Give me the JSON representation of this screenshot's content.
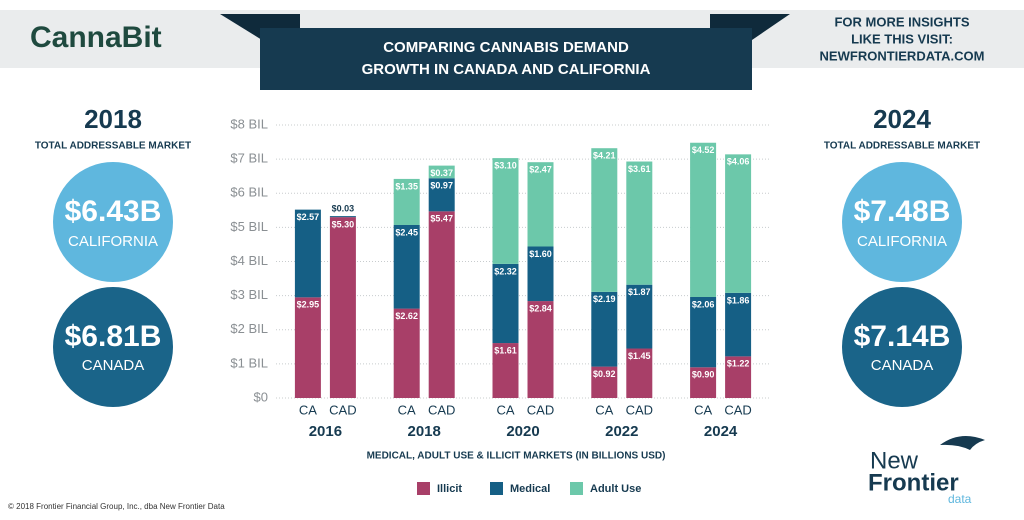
{
  "brand": "CannaBit",
  "promo": [
    "FOR MORE INSIGHTS",
    "LIKE THIS VISIT:",
    "NEWFRONTIERDATA.COM"
  ],
  "left_panel": {
    "year": "2018",
    "subtitle": "TOTAL ADDRESSABLE MARKET",
    "california": {
      "value": "$6.43B",
      "label": "CALIFORNIA"
    },
    "canada": {
      "value": "$6.81B",
      "label": "CANADA"
    }
  },
  "right_panel": {
    "year": "2024",
    "subtitle": "TOTAL ADDRESSABLE MARKET",
    "california": {
      "value": "$7.48B",
      "label": "CALIFORNIA"
    },
    "canada": {
      "value": "$7.14B",
      "label": "CANADA"
    }
  },
  "logo": {
    "line1": "New",
    "line2": "Frontier",
    "line3": "data"
  },
  "copyright": "© 2018 Frontier Financial Group, Inc., dba New Frontier Data",
  "chart_data": {
    "type": "stacked_bar",
    "title": [
      "COMPARING CANNABIS DEMAND",
      "GROWTH IN CANADA AND CALIFORNIA"
    ],
    "x_label": "MEDICAL, ADULT USE & ILLICIT MARKETS (IN BILLIONS USD)",
    "groups": [
      "2016",
      "2018",
      "2020",
      "2022",
      "2024"
    ],
    "categories": [
      "CA",
      "CAD",
      "CA",
      "CAD",
      "CA",
      "CAD",
      "CA",
      "CAD",
      "CA",
      "CAD"
    ],
    "series": [
      {
        "name": "Illicit",
        "color": "#a83f68",
        "values": [
          2.95,
          5.3,
          2.62,
          5.47,
          1.61,
          2.84,
          0.92,
          1.45,
          0.9,
          1.22
        ],
        "value_labels": [
          "$2.95",
          "$5.30",
          "$2.62",
          "$5.47",
          "$1.61",
          "$2.84",
          "$0.92",
          "$1.45",
          "$0.90",
          "$1.22"
        ]
      },
      {
        "name": "Medical",
        "color": "#155f85",
        "values": [
          2.57,
          0.03,
          2.45,
          0.97,
          2.32,
          1.6,
          2.19,
          1.87,
          2.06,
          1.86
        ],
        "value_labels": [
          "$2.57",
          "$0.03",
          "$2.45",
          "$0.97",
          "$2.32",
          "$1.60",
          "$2.19",
          "$1.87",
          "$2.06",
          "$1.86"
        ]
      },
      {
        "name": "Adult Use",
        "color": "#6cc8aa",
        "values": [
          null,
          null,
          1.35,
          0.37,
          3.1,
          2.47,
          4.21,
          3.61,
          4.52,
          4.06
        ],
        "value_labels": [
          null,
          null,
          "$1.35",
          "$0.37",
          "$3.10",
          "$2.47",
          "$4.21",
          "$3.61",
          "$4.52",
          "$4.06"
        ]
      }
    ],
    "ylim": [
      0,
      8
    ],
    "yticks": [
      {
        "value": 0,
        "label": "$0"
      },
      {
        "value": 1,
        "label": "$1 BIL"
      },
      {
        "value": 2,
        "label": "$2 BIL"
      },
      {
        "value": 3,
        "label": "$3 BIL"
      },
      {
        "value": 4,
        "label": "$4 BIL"
      },
      {
        "value": 5,
        "label": "$5 BIL"
      },
      {
        "value": 6,
        "label": "$6 BIL"
      },
      {
        "value": 7,
        "label": "$7 BIL"
      },
      {
        "value": 8,
        "label": "$8 BIL"
      }
    ],
    "grid": true
  }
}
